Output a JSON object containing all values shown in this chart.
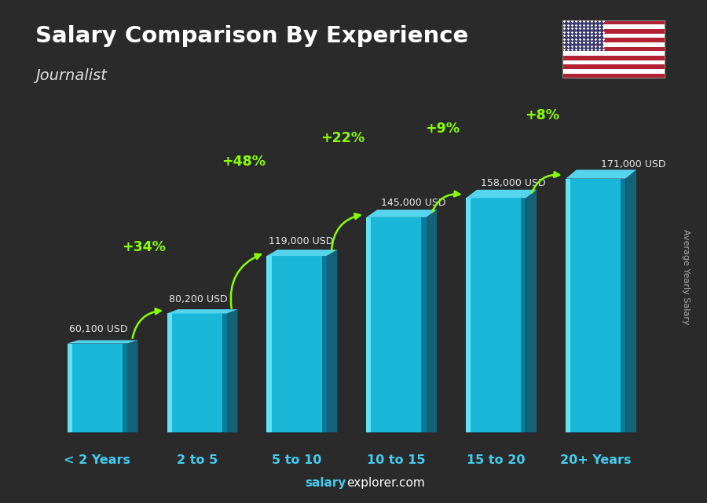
{
  "title": "Salary Comparison By Experience",
  "subtitle": "Journalist",
  "categories": [
    "< 2 Years",
    "2 to 5",
    "5 to 10",
    "10 to 15",
    "15 to 20",
    "20+ Years"
  ],
  "values": [
    60100,
    80200,
    119000,
    145000,
    158000,
    171000
  ],
  "value_labels": [
    "60,100 USD",
    "80,200 USD",
    "119,000 USD",
    "145,000 USD",
    "158,000 USD",
    "171,000 USD"
  ],
  "pct_changes": [
    "+34%",
    "+48%",
    "+22%",
    "+9%",
    "+8%"
  ],
  "bar_face_color": "#1ab8d8",
  "bar_highlight_color": "#6be8f8",
  "bar_dark_color": "#0a7a99",
  "bar_top_color": "#55d4ee",
  "bar_shadow_color": "#0d6680",
  "bg_color": "#2a2a2a",
  "title_color": "#ffffff",
  "subtitle_color": "#e0e0e0",
  "value_label_color": "#e8e8e8",
  "pct_color": "#88ff00",
  "xlabel_color": "#44ccee",
  "arrow_color": "#88ff00",
  "ylabel_text": "Average Yearly Salary",
  "footer_salary_color": "#44ccee",
  "footer_explorer_color": "#ffffff",
  "ylim_max": 210000,
  "bar_bottom": 0,
  "bar_width": 0.6
}
